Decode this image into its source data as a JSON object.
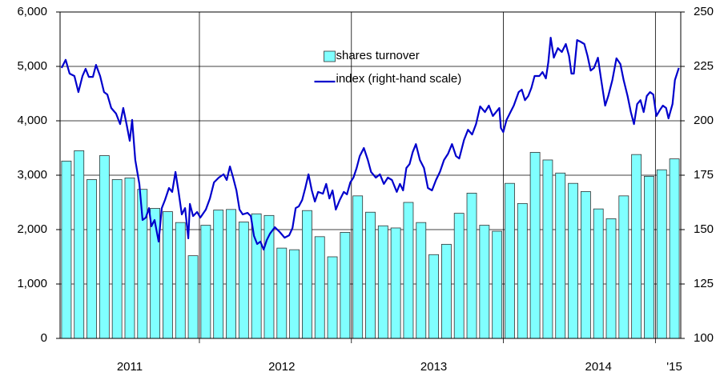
{
  "chart_data": {
    "type": "bar-line",
    "categories": [
      null,
      null,
      null,
      null,
      null,
      "2011",
      null,
      null,
      null,
      null,
      null,
      null,
      null,
      null,
      null,
      null,
      null,
      "2012",
      null,
      null,
      null,
      null,
      null,
      null,
      null,
      null,
      null,
      null,
      null,
      "2013",
      null,
      null,
      null,
      null,
      null,
      null,
      null,
      null,
      null,
      null,
      null,
      null,
      "2014",
      null,
      null,
      null,
      null,
      null,
      "'15"
    ],
    "xlim": [
      -0.5,
      48.5
    ],
    "series": [
      {
        "name": "shares turnover",
        "type": "bar",
        "color": "#80ffff",
        "values": [
          3260,
          3450,
          2920,
          3360,
          2920,
          2950,
          2740,
          2390,
          2330,
          2130,
          1520,
          2080,
          2360,
          2370,
          2140,
          2290,
          2260,
          1660,
          1630,
          2350,
          1870,
          1500,
          1950,
          2620,
          2320,
          2070,
          2030,
          2500,
          2130,
          1540,
          1730,
          2300,
          2670,
          2080,
          1970,
          2850,
          2480,
          3420,
          3280,
          3040,
          2850,
          2700,
          2380,
          2200,
          2620,
          3380,
          2980,
          3100,
          3300
        ]
      },
      {
        "name": "index (right-hand scale)",
        "type": "line",
        "color": "#0000cc",
        "axis": "y2",
        "x": [
          -0.38,
          -0.06,
          0.25,
          0.63,
          0.95,
          1.27,
          1.52,
          1.77,
          2.09,
          2.34,
          2.66,
          2.97,
          3.23,
          3.54,
          3.92,
          4.24,
          4.49,
          4.75,
          5.0,
          5.19,
          5.44,
          5.76,
          6.01,
          6.27,
          6.52,
          6.71,
          6.96,
          7.28,
          7.53,
          7.78,
          8.1,
          8.35,
          8.61,
          8.86,
          9.11,
          9.37,
          9.62,
          9.75,
          10.0,
          10.32,
          10.57,
          11.01,
          11.33,
          11.65,
          12.03,
          12.41,
          12.66,
          12.91,
          13.16,
          13.42,
          13.67,
          13.92,
          14.3,
          14.56,
          14.81,
          15.06,
          15.32,
          15.57,
          15.82,
          16.08,
          16.46,
          16.84,
          17.22,
          17.59,
          17.85,
          18.1,
          18.35,
          18.61,
          18.86,
          19.11,
          19.37,
          19.62,
          19.87,
          20.25,
          20.51,
          20.76,
          21.01,
          21.27,
          21.58,
          21.9,
          22.15,
          22.41,
          22.66,
          22.91,
          23.16,
          23.48,
          23.8,
          24.05,
          24.43,
          24.75,
          25.06,
          25.38,
          25.7,
          26.08,
          26.33,
          26.58,
          26.84,
          27.09,
          27.34,
          27.59,
          27.91,
          28.23,
          28.54,
          28.86,
          29.18,
          29.49,
          29.81,
          30.13,
          30.44,
          30.76,
          31.01,
          31.39,
          31.71,
          32.03,
          32.34,
          32.66,
          33.04,
          33.35,
          33.67,
          33.92,
          34.18,
          34.3,
          34.49,
          34.75,
          35.06,
          35.32,
          35.7,
          35.95,
          36.2,
          36.46,
          36.71,
          36.96,
          37.34,
          37.59,
          37.85,
          38.04,
          38.23,
          38.48,
          38.8,
          39.11,
          39.43,
          39.68,
          39.87,
          40.06,
          40.32,
          40.57,
          40.89,
          41.14,
          41.39,
          41.65,
          41.96,
          42.22,
          42.53,
          42.78,
          43.1,
          43.42,
          43.73,
          43.99,
          44.3,
          44.56,
          44.81,
          45.06,
          45.32,
          45.57,
          45.82,
          46.08,
          46.33,
          46.58,
          46.84,
          47.09,
          47.34,
          47.53,
          47.85,
          48.04,
          48.35
        ],
        "values": [
          224.3,
          228.0,
          221.7,
          220.6,
          213.2,
          220.6,
          223.9,
          220.2,
          220.2,
          225.7,
          220.6,
          213.2,
          212.1,
          205.9,
          203.3,
          198.5,
          205.9,
          198.5,
          190.8,
          200.4,
          182.0,
          171.0,
          154.4,
          155.5,
          159.9,
          151.5,
          154.4,
          144.5,
          159.9,
          163.6,
          169.1,
          167.3,
          176.5,
          167.3,
          157.0,
          159.9,
          146.0,
          161.8,
          156.2,
          158.1,
          155.5,
          159.2,
          164.3,
          171.7,
          173.9,
          175.4,
          172.8,
          179.0,
          173.9,
          168.0,
          159.2,
          157.0,
          157.7,
          156.2,
          147.1,
          143.4,
          144.5,
          140.8,
          145.2,
          148.2,
          151.1,
          148.9,
          146.3,
          147.4,
          150.7,
          159.9,
          160.7,
          163.6,
          169.1,
          175.4,
          168.0,
          162.9,
          167.3,
          166.5,
          171.0,
          164.3,
          168.0,
          159.2,
          163.6,
          167.3,
          166.2,
          171.7,
          173.9,
          178.3,
          183.8,
          187.5,
          182.0,
          176.5,
          173.9,
          175.4,
          171.0,
          173.9,
          172.8,
          167.3,
          171.0,
          168.0,
          178.3,
          180.1,
          185.6,
          189.3,
          182.0,
          178.3,
          169.1,
          168.0,
          172.8,
          176.5,
          182.0,
          184.9,
          189.3,
          183.8,
          182.7,
          191.2,
          195.9,
          193.7,
          198.5,
          206.6,
          204.0,
          207.0,
          202.2,
          204.0,
          205.9,
          196.7,
          194.8,
          200.4,
          204.0,
          207.0,
          213.2,
          214.3,
          209.5,
          211.4,
          215.1,
          220.6,
          220.6,
          222.4,
          219.5,
          226.8,
          238.2,
          229.0,
          233.4,
          231.6,
          235.3,
          229.8,
          221.7,
          221.7,
          237.1,
          236.4,
          235.3,
          229.8,
          223.1,
          224.3,
          229.0,
          218.7,
          207.0,
          211.4,
          218.7,
          228.7,
          226.1,
          218.7,
          211.4,
          204.0,
          198.5,
          207.7,
          209.5,
          204.0,
          211.4,
          213.2,
          212.1,
          202.2,
          204.8,
          207.0,
          205.9,
          201.1,
          207.7,
          218.7,
          224.3
        ]
      }
    ],
    "ylim": [
      0,
      6000
    ],
    "yticks": [
      0,
      {
        "value": 1000,
        "label": "1,000"
      },
      {
        "value": 2000,
        "label": "2,000"
      },
      {
        "value": 3000,
        "label": "3,000"
      },
      {
        "value": 4000,
        "label": "4,000"
      },
      {
        "value": 5000,
        "label": "5,000"
      },
      {
        "value": 6000,
        "label": "6,000"
      }
    ],
    "y2lim": [
      100,
      250
    ],
    "y2ticks": [
      100,
      125,
      150,
      175,
      200,
      225,
      250
    ],
    "grid": true,
    "legend": "upper center"
  }
}
